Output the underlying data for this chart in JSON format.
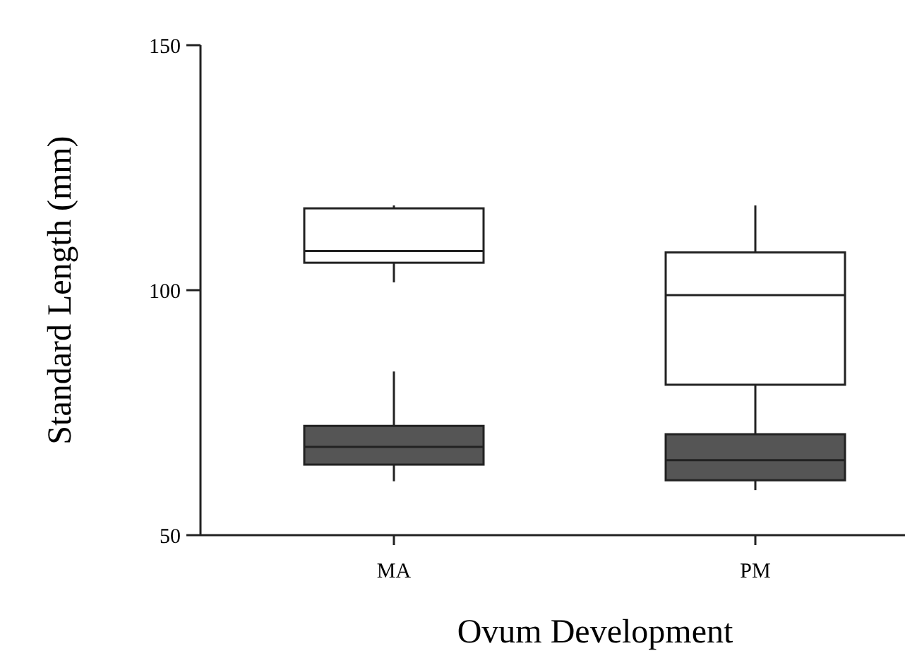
{
  "chart_data": {
    "type": "box",
    "xlabel": "Ovum Development",
    "ylabel": "Standard Length (mm)",
    "categories": [
      "MA",
      "PM"
    ],
    "ylim": [
      50,
      150
    ],
    "yticks": [
      50,
      100,
      150
    ],
    "grid": false,
    "series": [
      {
        "color": "#ffffff",
        "boxes": [
          {
            "low": 101.6,
            "q1": 105.6,
            "median": 108,
            "q3": 116.7,
            "high": 117.3
          },
          {
            "low": 70.6,
            "q1": 80.7,
            "median": 99,
            "q3": 107.7,
            "high": 117.3
          }
        ]
      },
      {
        "color": "#555555",
        "boxes": [
          {
            "low": 61,
            "q1": 64.4,
            "median": 68,
            "q3": 72.3,
            "high": 83.4
          },
          {
            "low": 59.2,
            "q1": 61.2,
            "median": 65.3,
            "q3": 70.6,
            "high": 70.6
          }
        ]
      }
    ]
  }
}
